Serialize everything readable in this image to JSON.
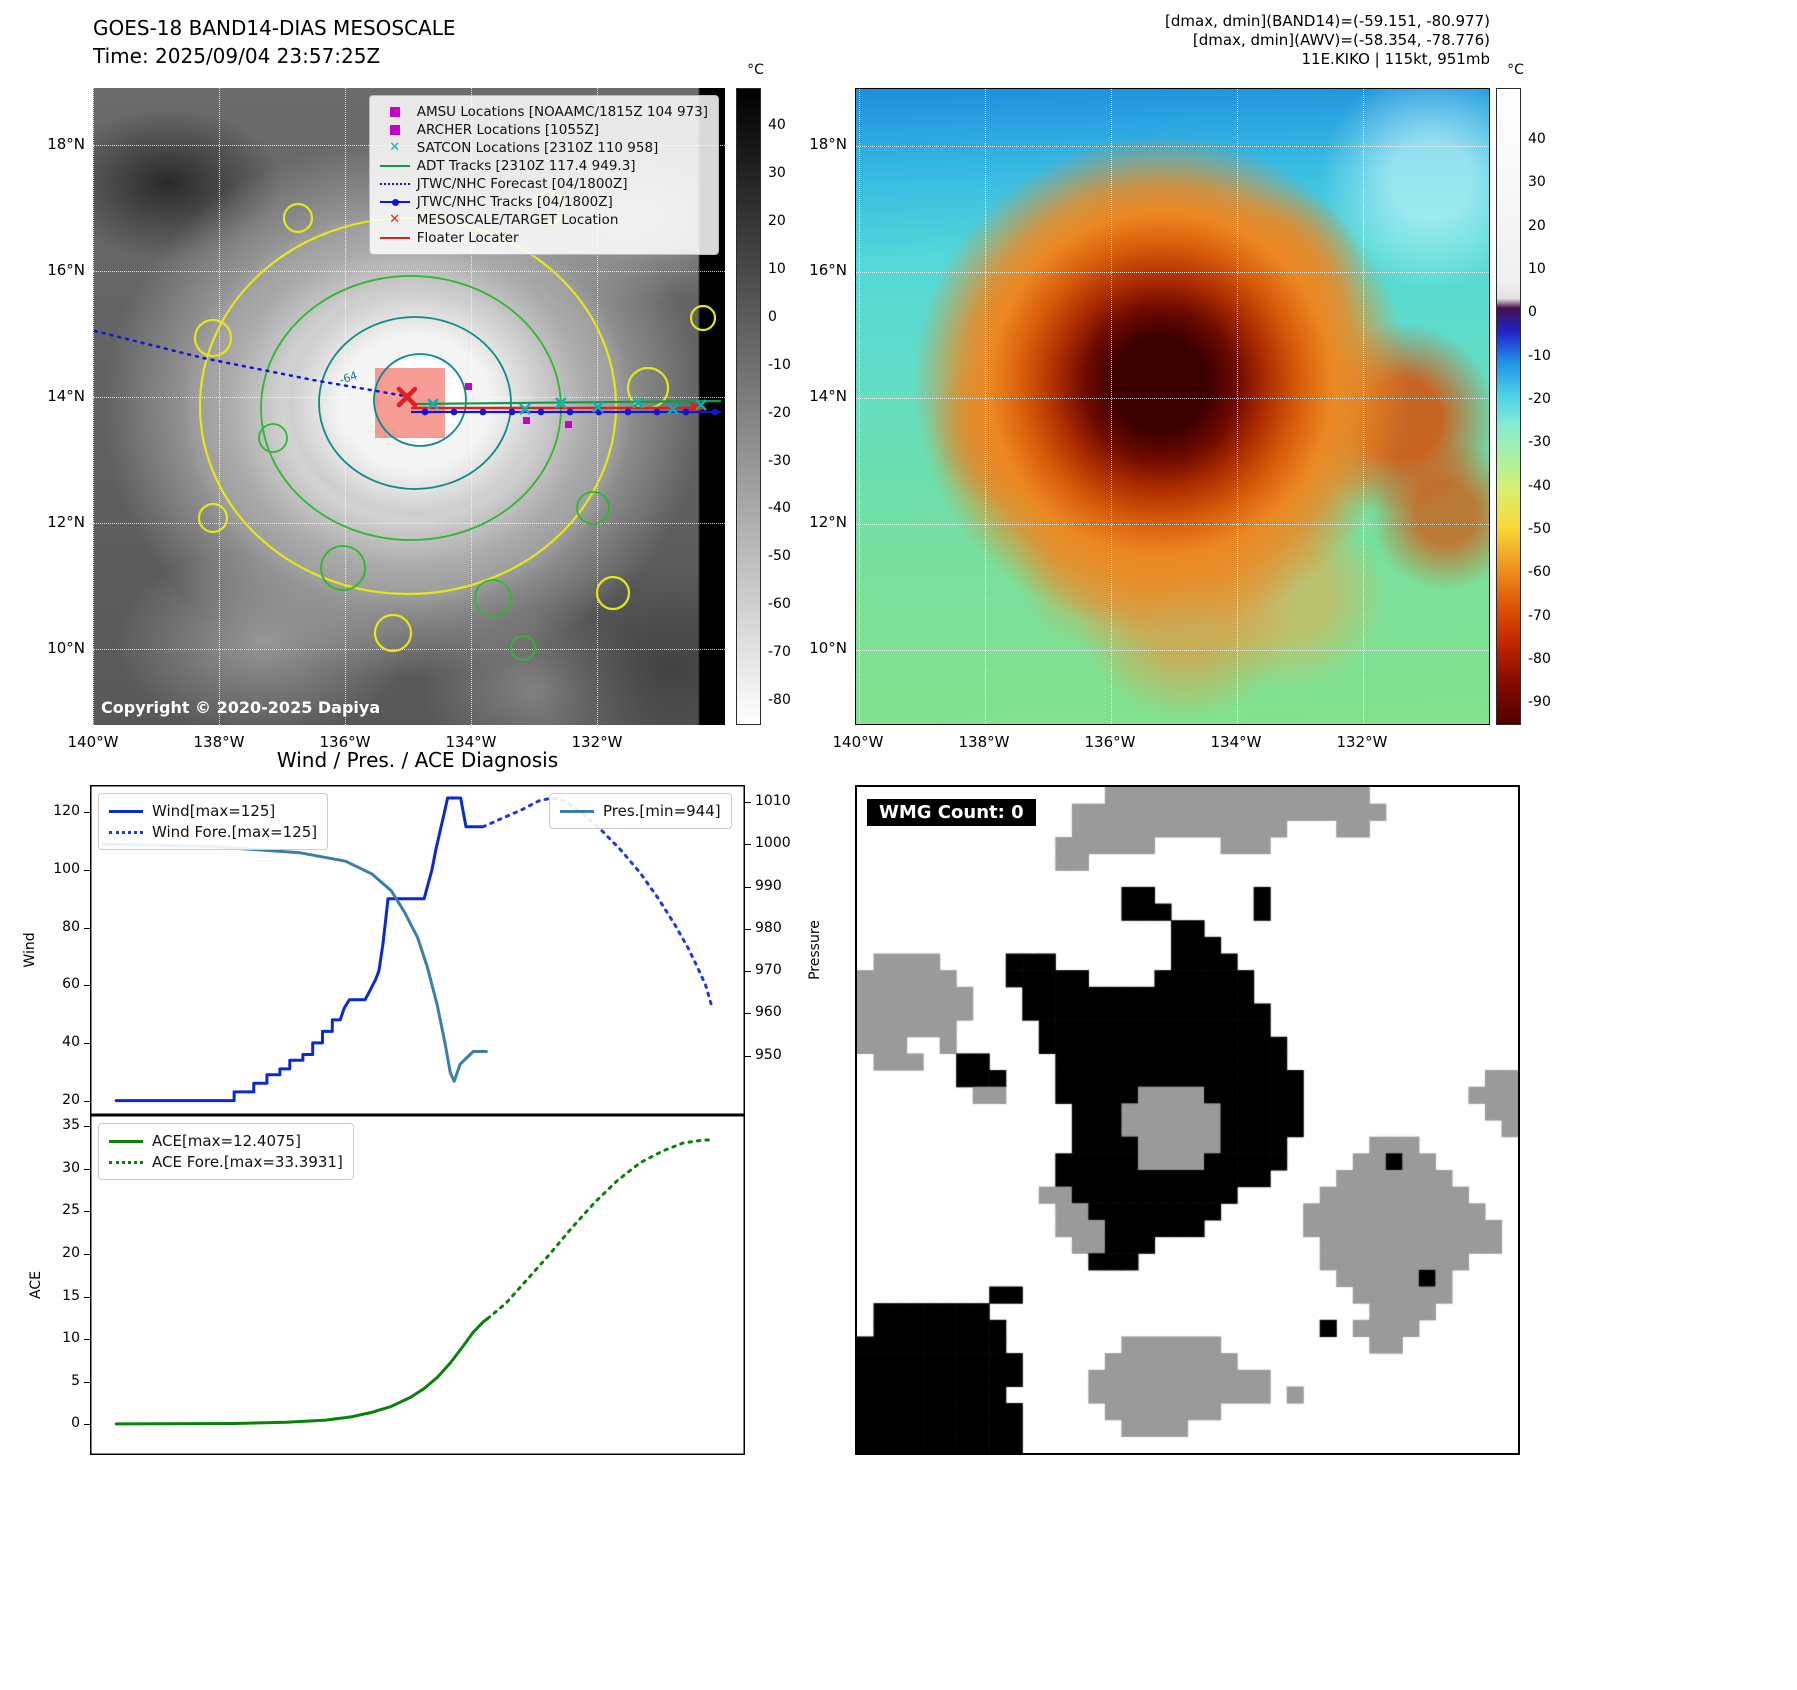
{
  "left_panel": {
    "title": "GOES-18 BAND14-DIAS MESOSCALE",
    "time": "Time: 2025/09/04 23:57:25Z",
    "copyright": "Copyright © 2020-2025 Dapiya",
    "contour_label": "-64",
    "colorbar": {
      "unit": "°C",
      "vmin": -85,
      "vmax": 48,
      "ticks": [
        40,
        30,
        20,
        10,
        0,
        -10,
        -20,
        -30,
        -40,
        -50,
        -60,
        -70,
        -80
      ]
    },
    "legend": [
      {
        "label": "AMSU Locations [NOAAMC/1815Z 104 973]",
        "marker": "square",
        "color": "#c800c8"
      },
      {
        "label": "ARCHER Locations [1055Z]",
        "marker": "square",
        "color": "#c800c8"
      },
      {
        "label": "SATCON Locations [2310Z 110 958]",
        "marker": "x",
        "color": "#00b4b4"
      },
      {
        "label": "ADT Tracks [2310Z 117.4 949.3]",
        "marker": "line",
        "color": "#0a9a50"
      },
      {
        "label": "JTWC/NHC Forecast [04/1800Z]",
        "marker": "dotted",
        "color": "#1414d2"
      },
      {
        "label": "JTWC/NHC Tracks [04/1800Z]",
        "marker": "line-dot",
        "color": "#1414d2"
      },
      {
        "label": "MESOSCALE/TARGET Location",
        "marker": "x",
        "color": "#e02020"
      },
      {
        "label": "Floater Locater",
        "marker": "line",
        "color": "#e02020"
      }
    ]
  },
  "right_panel": {
    "header_lines": [
      "[dmax, dmin](BAND14)=(-59.151, -80.977)",
      "[dmax, dmin](AWV)=(-58.354, -78.776)",
      "11E.KIKO | 115kt, 951mb"
    ],
    "colorbar": {
      "unit": "°C",
      "vmin": -95,
      "vmax": 52,
      "ticks": [
        40,
        30,
        20,
        10,
        0,
        -10,
        -20,
        -30,
        -40,
        -50,
        -60,
        -70,
        -80,
        -90
      ]
    }
  },
  "maps": {
    "lat_ticks": [
      "18°N",
      "16°N",
      "14°N",
      "12°N",
      "10°N"
    ],
    "lon_ticks": [
      "140°W",
      "138°W",
      "136°W",
      "134°W",
      "132°W"
    ]
  },
  "chart_data": [
    {
      "type": "line",
      "id": "wind_pres",
      "title": "Wind / Pres. / ACE Diagnosis",
      "ylabel_left": "Wind",
      "ylabel_right": "Pressure",
      "ylim_left": [
        15,
        129.5
      ],
      "ylim_right": [
        936,
        1014
      ],
      "yticks_left": [
        120,
        100,
        80,
        60,
        40,
        20
      ],
      "yticks_right": [
        1010,
        1000,
        990,
        980,
        970,
        960,
        950
      ],
      "legend_left": [
        {
          "label": "Wind[max=125]",
          "color": "#0a2ad0",
          "dash": false
        },
        {
          "label": "Wind Fore.[max=125]",
          "color": "#2038e0",
          "dash": true
        }
      ],
      "legend_right": [
        {
          "label": "Pres.[min=944]",
          "color": "#3b7fa8",
          "dash": false
        }
      ],
      "series": [
        {
          "name": "Wind",
          "axis": "left",
          "color": "#0a2ad0",
          "dash": false,
          "width": 3,
          "points": [
            [
              0.04,
              20
            ],
            [
              0.22,
              20
            ],
            [
              0.22,
              23
            ],
            [
              0.25,
              23
            ],
            [
              0.25,
              26
            ],
            [
              0.27,
              26
            ],
            [
              0.27,
              29
            ],
            [
              0.29,
              29
            ],
            [
              0.29,
              31
            ],
            [
              0.305,
              31
            ],
            [
              0.305,
              34
            ],
            [
              0.325,
              34
            ],
            [
              0.325,
              36
            ],
            [
              0.34,
              36
            ],
            [
              0.34,
              40
            ],
            [
              0.355,
              40
            ],
            [
              0.355,
              44
            ],
            [
              0.37,
              44
            ],
            [
              0.37,
              48
            ],
            [
              0.382,
              48
            ],
            [
              0.388,
              52
            ],
            [
              0.396,
              55
            ],
            [
              0.42,
              55
            ],
            [
              0.427,
              58
            ],
            [
              0.436,
              62
            ],
            [
              0.441,
              65
            ],
            [
              0.447,
              74
            ],
            [
              0.452,
              84
            ],
            [
              0.455,
              90
            ],
            [
              0.51,
              90
            ],
            [
              0.516,
              95
            ],
            [
              0.522,
              100
            ],
            [
              0.528,
              107
            ],
            [
              0.535,
              114
            ],
            [
              0.541,
              120
            ],
            [
              0.546,
              125
            ],
            [
              0.566,
              125
            ],
            [
              0.57,
              120
            ],
            [
              0.574,
              115
            ],
            [
              0.6,
              115
            ]
          ]
        },
        {
          "name": "Wind Fore.",
          "axis": "left",
          "color": "#2038e0",
          "dash": true,
          "width": 3,
          "points": [
            [
              0.6,
              115
            ],
            [
              0.63,
              118
            ],
            [
              0.66,
              121
            ],
            [
              0.685,
              124
            ],
            [
              0.705,
              125
            ],
            [
              0.725,
              124
            ],
            [
              0.75,
              120
            ],
            [
              0.78,
              114
            ],
            [
              0.81,
              107
            ],
            [
              0.84,
              99
            ],
            [
              0.868,
              90
            ],
            [
              0.893,
              81
            ],
            [
              0.913,
              73
            ],
            [
              0.928,
              66
            ],
            [
              0.94,
              60
            ],
            [
              0.95,
              52
            ]
          ]
        },
        {
          "name": "Pres.",
          "axis": "right",
          "color": "#3b7fa8",
          "dash": false,
          "width": 3,
          "points": [
            [
              0.02,
              1000
            ],
            [
              0.18,
              999.5
            ],
            [
              0.32,
              998
            ],
            [
              0.39,
              996
            ],
            [
              0.43,
              993
            ],
            [
              0.46,
              989
            ],
            [
              0.48,
              984
            ],
            [
              0.5,
              978
            ],
            [
              0.515,
              971
            ],
            [
              0.53,
              962
            ],
            [
              0.542,
              953
            ],
            [
              0.55,
              946
            ],
            [
              0.556,
              944
            ],
            [
              0.565,
              948
            ],
            [
              0.585,
              951
            ],
            [
              0.605,
              951
            ]
          ]
        }
      ]
    },
    {
      "type": "line",
      "id": "ace",
      "ylabel_left": "ACE",
      "ylim_left": [
        -3.6,
        36.3
      ],
      "yticks_left": [
        35,
        30,
        25,
        20,
        15,
        10,
        5,
        0
      ],
      "legend_left": [
        {
          "label": "ACE[max=12.4075]",
          "color": "#0a820a",
          "dash": false
        },
        {
          "label": "ACE Fore.[max=33.3931]",
          "color": "#0a820a",
          "dash": true
        }
      ],
      "series": [
        {
          "name": "ACE",
          "axis": "left",
          "color": "#0a820a",
          "dash": false,
          "width": 3,
          "points": [
            [
              0.04,
              0.05
            ],
            [
              0.22,
              0.1
            ],
            [
              0.3,
              0.25
            ],
            [
              0.36,
              0.5
            ],
            [
              0.4,
              0.9
            ],
            [
              0.43,
              1.4
            ],
            [
              0.46,
              2.1
            ],
            [
              0.49,
              3.2
            ],
            [
              0.51,
              4.2
            ],
            [
              0.53,
              5.5
            ],
            [
              0.55,
              7.2
            ],
            [
              0.57,
              9.2
            ],
            [
              0.585,
              10.8
            ],
            [
              0.6,
              12.0
            ],
            [
              0.607,
              12.41
            ]
          ]
        },
        {
          "name": "ACE Fore.",
          "axis": "left",
          "color": "#0a820a",
          "dash": true,
          "width": 3,
          "points": [
            [
              0.607,
              12.41
            ],
            [
              0.635,
              14.2
            ],
            [
              0.665,
              16.8
            ],
            [
              0.7,
              19.8
            ],
            [
              0.735,
              23
            ],
            [
              0.77,
              26
            ],
            [
              0.805,
              28.6
            ],
            [
              0.84,
              30.7
            ],
            [
              0.875,
              32.1
            ],
            [
              0.905,
              33.0
            ],
            [
              0.935,
              33.35
            ],
            [
              0.952,
              33.39
            ]
          ]
        }
      ]
    }
  ],
  "wmg": {
    "label": "WMG Count: 0",
    "palette": {
      "b": "#000000",
      "g": "#9a9a9a"
    },
    "grid": [
      "...............gggggggggggggggg.........",
      ".............ggggggggggggggggggg........",
      ".............ggggggggggggg...gg.........",
      "............gggggg....ggg...............",
      "............gg..........................",
      "........................................",
      "................bb......b...............",
      "................bbb.....b...............",
      "...................bb...................",
      "...................bbb..................",
      ".gggg....bbb.......bbbb.................",
      "gggggg...bbbbb....bbbbbb................",
      "ggggggg...bbbbbbbbbbbbbb................",
      "ggggggg...bbbbbbbbbbbbbbb...............",
      "gggggg.....bbbbbbbbbbbbbb...............",
      "ggg..g.....bbbbbbbbbbbbbbb..............",
      ".ggg..bb....bbbbbbbbbbbbbb..............",
      "......bbb...bbbbbbbbbbbbbbb...........gg",
      ".......gg...bbbbbggggbbbbbb..........ggg",
      ".............bbbggggggbbbbb...........gg",
      ".............bbbggggggbbbbb............g",
      ".............bbbbgggggbbbb.....ggg......",
      "............bbbbbggggbbbbb....ggbgg.....",
      "............bbbbbbbbbbbbb....ggggggg....",
      "...........ggbbbbbbbbbb.....ggggggggg...",
      "............ggbbbbbbbb.....ggggggggggg..",
      "............gggbbbbbb......gggggggggggg.",
      ".............ggbbb..........ggggggggggg.",
      "..............bbb...........ggggggggg...",
      ".............................gggggbg....",
      "........bb....................gggggg....",
      ".bbbbbbb.......................gggg.....",
      ".bbbbbbbb...................b.gggg......",
      "bbbbbbbbb.......gggggg.........gg.......",
      "bbbbbbbbbb.....gggggggg.................",
      "bbbbbbbbbb....ggggggggggg...............",
      "bbbbbbbbb.....ggggggggggg.g.............",
      "bbbbbbbbbb.....ggggggg..................",
      "bbbbbbbbbb......gggg....................",
      "bbbbbbbbbb.............................."
    ]
  }
}
